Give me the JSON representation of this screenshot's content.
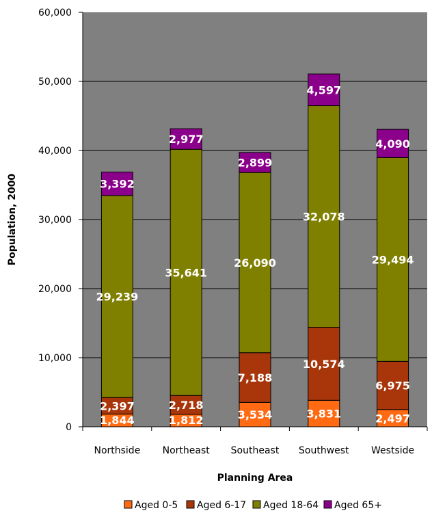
{
  "chart_data": {
    "type": "bar",
    "stacked": true,
    "categories": [
      "Northside",
      "Northeast",
      "Southeast",
      "Southwest",
      "Westside"
    ],
    "series": [
      {
        "name": "Aged 0-5",
        "color": "#ff6a13",
        "values": [
          1844,
          1812,
          3534,
          3831,
          2497
        ]
      },
      {
        "name": "Aged 6-17",
        "color": "#a8360a",
        "values": [
          2397,
          2718,
          7188,
          10574,
          6975
        ]
      },
      {
        "name": "Aged 18-64",
        "color": "#808000",
        "values": [
          29239,
          35641,
          26090,
          32078,
          29494
        ]
      },
      {
        "name": "Aged 65+",
        "color": "#8b008b",
        "values": [
          3392,
          2977,
          2899,
          4597,
          4090
        ]
      }
    ],
    "data_labels": [
      [
        "1,844",
        "1,812",
        "3,534",
        "3,831",
        "2,497"
      ],
      [
        "2,397",
        "2,718",
        "7,188",
        "10,574",
        "6,975"
      ],
      [
        "29,239",
        "35,641",
        "26,090",
        "32,078",
        "29,494"
      ],
      [
        "3,392",
        "2,977",
        "2,899",
        "4,597",
        "4,090"
      ]
    ],
    "yticks": [
      0,
      10000,
      20000,
      30000,
      40000,
      50000,
      60000
    ],
    "ytick_labels": [
      "0",
      "10,000",
      "20,000",
      "30,000",
      "40,000",
      "50,000",
      "60,000"
    ],
    "xlabel": "Planning Area",
    "ylabel": "Population, 2000",
    "ylim": [
      0,
      60000
    ],
    "grid": true,
    "legend_position": "bottom",
    "plot_background": "#808080"
  }
}
